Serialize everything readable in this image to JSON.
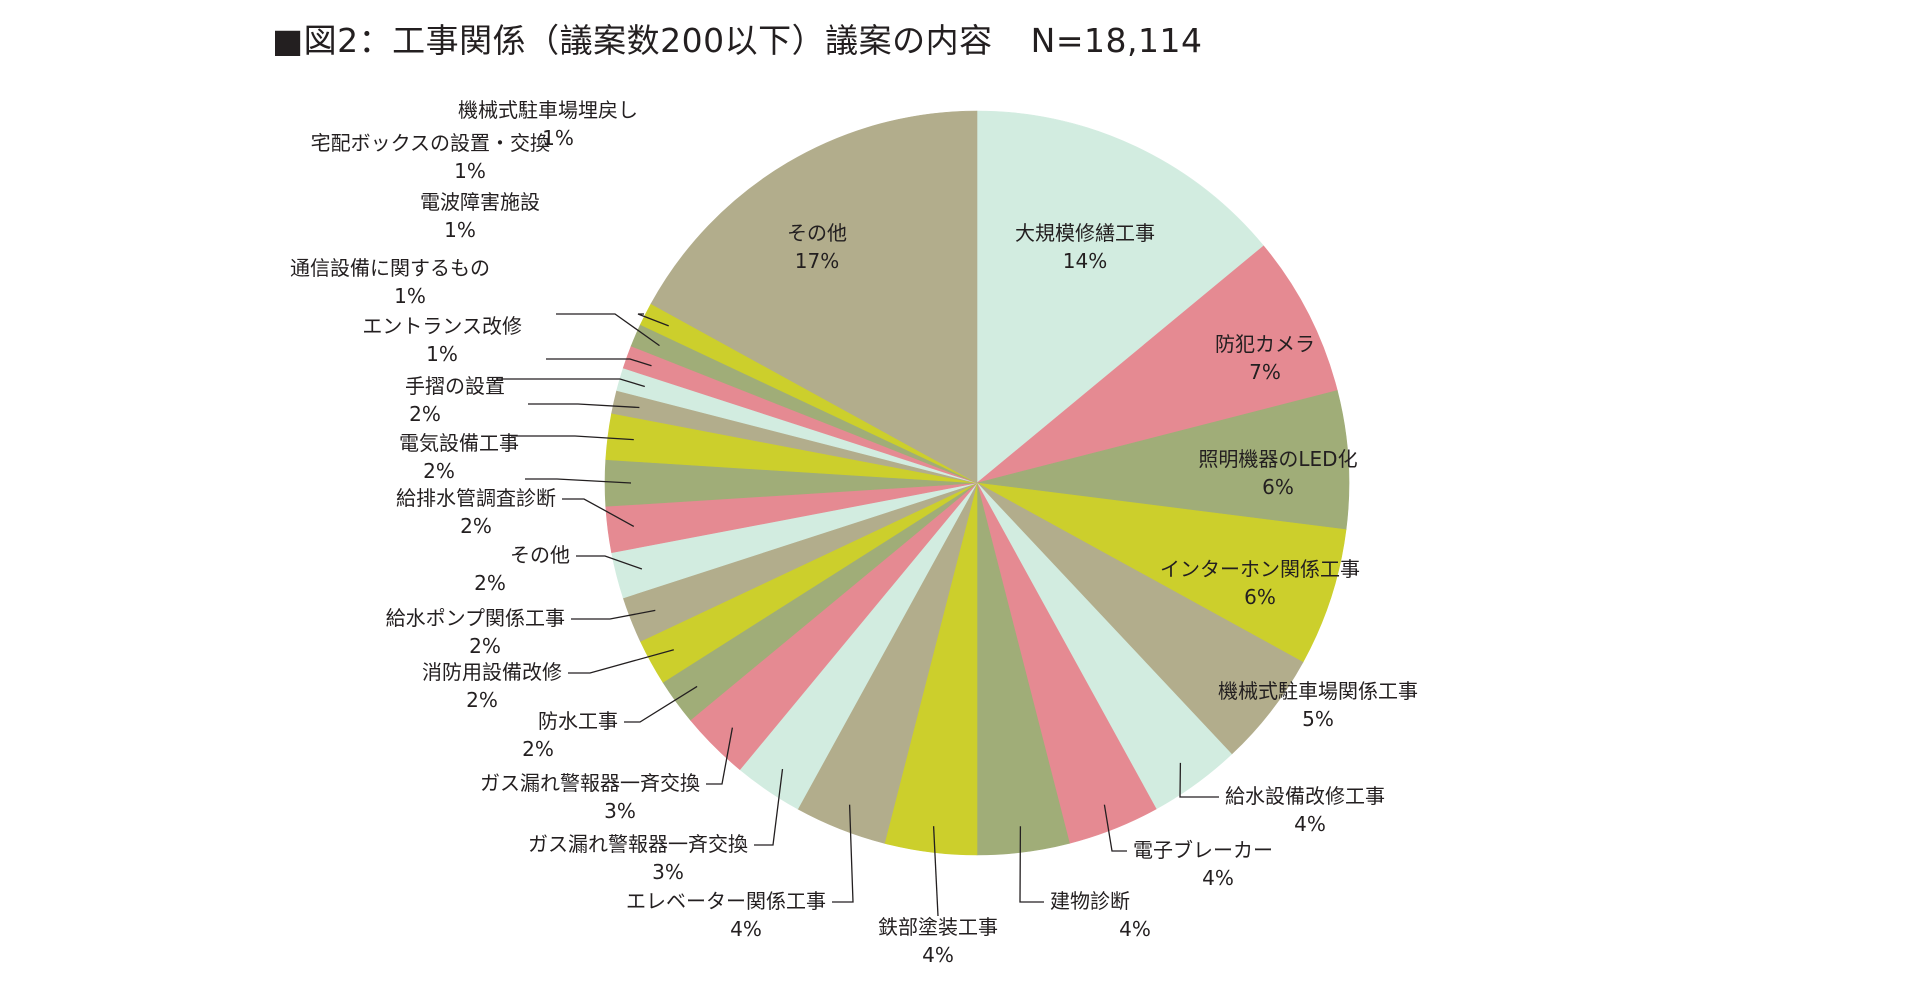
{
  "title": "■図2：工事関係（議案数200以下）議案の内容",
  "n_label": "N=18,114",
  "chart_data": {
    "type": "pie",
    "title": "■図2：工事関係（議案数200以下）議案の内容",
    "total": "N=18,114",
    "start": "12 o'clock",
    "direction": "clockwise",
    "slices": [
      {
        "name": "大規模修繕工事",
        "value": 14,
        "label": "14%",
        "color": "#d2ece0",
        "placement": "inside"
      },
      {
        "name": "防犯カメラ",
        "value": 7,
        "label": "7%",
        "color": "#e58a92",
        "placement": "inside"
      },
      {
        "name": "照明機器のLED化",
        "value": 6,
        "label": "6%",
        "color": "#a0ad78",
        "placement": "inside"
      },
      {
        "name": "インターホン関係工事",
        "value": 6,
        "label": "6%",
        "color": "#cccf2c",
        "placement": "inside"
      },
      {
        "name": "機械式駐車場関係工事",
        "value": 5,
        "label": "5%",
        "color": "#b2ad8c",
        "placement": "inside"
      },
      {
        "name": "給水設備改修工事",
        "value": 4,
        "label": "4%",
        "color": "#d2ece0",
        "placement": "outside"
      },
      {
        "name": "電子ブレーカー",
        "value": 4,
        "label": "4%",
        "color": "#e58a92",
        "placement": "outside"
      },
      {
        "name": "建物診断",
        "value": 4,
        "label": "4%",
        "color": "#a0ad78",
        "placement": "outside"
      },
      {
        "name": "鉄部塗装工事",
        "value": 4,
        "label": "4%",
        "color": "#cccf2c",
        "placement": "outside"
      },
      {
        "name": "エレベーター関係工事",
        "value": 4,
        "label": "4%",
        "color": "#b2ad8c",
        "placement": "outside"
      },
      {
        "name": "ガス漏れ警報器一斉交換",
        "value": 3,
        "label": "3%",
        "color": "#d2ece0",
        "placement": "outside"
      },
      {
        "name": "ガス漏れ警報器一斉交換",
        "value": 3,
        "label": "3%",
        "color": "#e58a92",
        "placement": "outside"
      },
      {
        "name": "防水工事",
        "value": 2,
        "label": "2%",
        "color": "#a0ad78",
        "placement": "outside"
      },
      {
        "name": "消防用設備改修",
        "value": 2,
        "label": "2%",
        "color": "#cccf2c",
        "placement": "outside"
      },
      {
        "name": "給水ポンプ関係工事",
        "value": 2,
        "label": "2%",
        "color": "#b2ad8c",
        "placement": "outside"
      },
      {
        "name": "その他",
        "value": 2,
        "label": "2%",
        "color": "#d2ece0",
        "placement": "outside"
      },
      {
        "name": "給排水管調査診断",
        "value": 2,
        "label": "2%",
        "color": "#e58a92",
        "placement": "outside"
      },
      {
        "name": "電気設備工事",
        "value": 2,
        "label": "2%",
        "color": "#a0ad78",
        "placement": "outside"
      },
      {
        "name": "手摺の設置",
        "value": 2,
        "label": "2%",
        "color": "#cccf2c",
        "placement": "outside"
      },
      {
        "name": "エントランス改修",
        "value": 1,
        "label": "1%",
        "color": "#b2ad8c",
        "placement": "outside"
      },
      {
        "name": "通信設備に関するもの",
        "value": 1,
        "label": "1%",
        "color": "#d2ece0",
        "placement": "outside"
      },
      {
        "name": "電波障害施設",
        "value": 1,
        "label": "1%",
        "color": "#e58a92",
        "placement": "outside"
      },
      {
        "name": "宅配ボックスの設置・交換",
        "value": 1,
        "label": "1%",
        "color": "#a0ad78",
        "placement": "outside"
      },
      {
        "name": "機械式駐車場埋戻し",
        "value": 1,
        "label": "1%",
        "color": "#cccf2c",
        "placement": "outside"
      },
      {
        "name": "その他",
        "value": 17,
        "label": "17%",
        "color": "#b2ad8c",
        "placement": "inside"
      }
    ]
  }
}
